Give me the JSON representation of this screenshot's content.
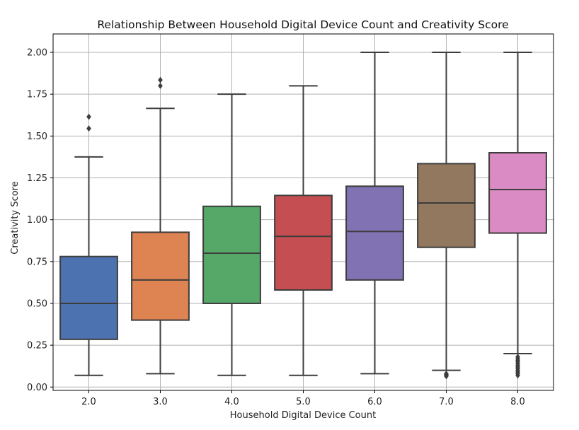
{
  "chart_data": {
    "type": "box",
    "title": "Relationship Between Household Digital Device Count and Creativity Score",
    "xlabel": "Household Digital Device Count",
    "ylabel": "Creativity Score",
    "ylim": [
      -0.02,
      2.11
    ],
    "yticks": [
      "0.00",
      "0.25",
      "0.50",
      "0.75",
      "1.00",
      "1.25",
      "1.50",
      "1.75",
      "2.00"
    ],
    "grid": true,
    "categories": [
      "2.0",
      "3.0",
      "4.0",
      "5.0",
      "6.0",
      "7.0",
      "8.0"
    ],
    "boxes": [
      {
        "category": "2.0",
        "whisker_low": 0.07,
        "q1": 0.285,
        "median": 0.5,
        "q3": 0.78,
        "whisker_high": 1.375,
        "outliers": [
          1.545,
          1.615
        ],
        "color": "#4c72b0"
      },
      {
        "category": "3.0",
        "whisker_low": 0.08,
        "q1": 0.4,
        "median": 0.64,
        "q3": 0.925,
        "whisker_high": 1.665,
        "outliers": [
          1.8,
          1.835
        ],
        "color": "#dd8452"
      },
      {
        "category": "4.0",
        "whisker_low": 0.07,
        "q1": 0.5,
        "median": 0.8,
        "q3": 1.08,
        "whisker_high": 1.75,
        "outliers": [],
        "color": "#55a868"
      },
      {
        "category": "5.0",
        "whisker_low": 0.07,
        "q1": 0.58,
        "median": 0.9,
        "q3": 1.145,
        "whisker_high": 1.8,
        "outliers": [],
        "color": "#c44e52"
      },
      {
        "category": "6.0",
        "whisker_low": 0.08,
        "q1": 0.64,
        "median": 0.93,
        "q3": 1.2,
        "whisker_high": 2.0,
        "outliers": [],
        "color": "#8172b3"
      },
      {
        "category": "7.0",
        "whisker_low": 0.1,
        "q1": 0.835,
        "median": 1.1,
        "q3": 1.335,
        "whisker_high": 2.0,
        "outliers": [
          0.065,
          0.07,
          0.075,
          0.08
        ],
        "color": "#937860"
      },
      {
        "category": "8.0",
        "whisker_low": 0.2,
        "q1": 0.92,
        "median": 1.18,
        "q3": 1.4,
        "whisker_high": 2.0,
        "outliers": [
          0.07,
          0.08,
          0.09,
          0.1,
          0.11,
          0.12,
          0.13,
          0.14,
          0.15,
          0.16,
          0.17,
          0.18
        ],
        "color": "#da8bc3"
      }
    ]
  }
}
